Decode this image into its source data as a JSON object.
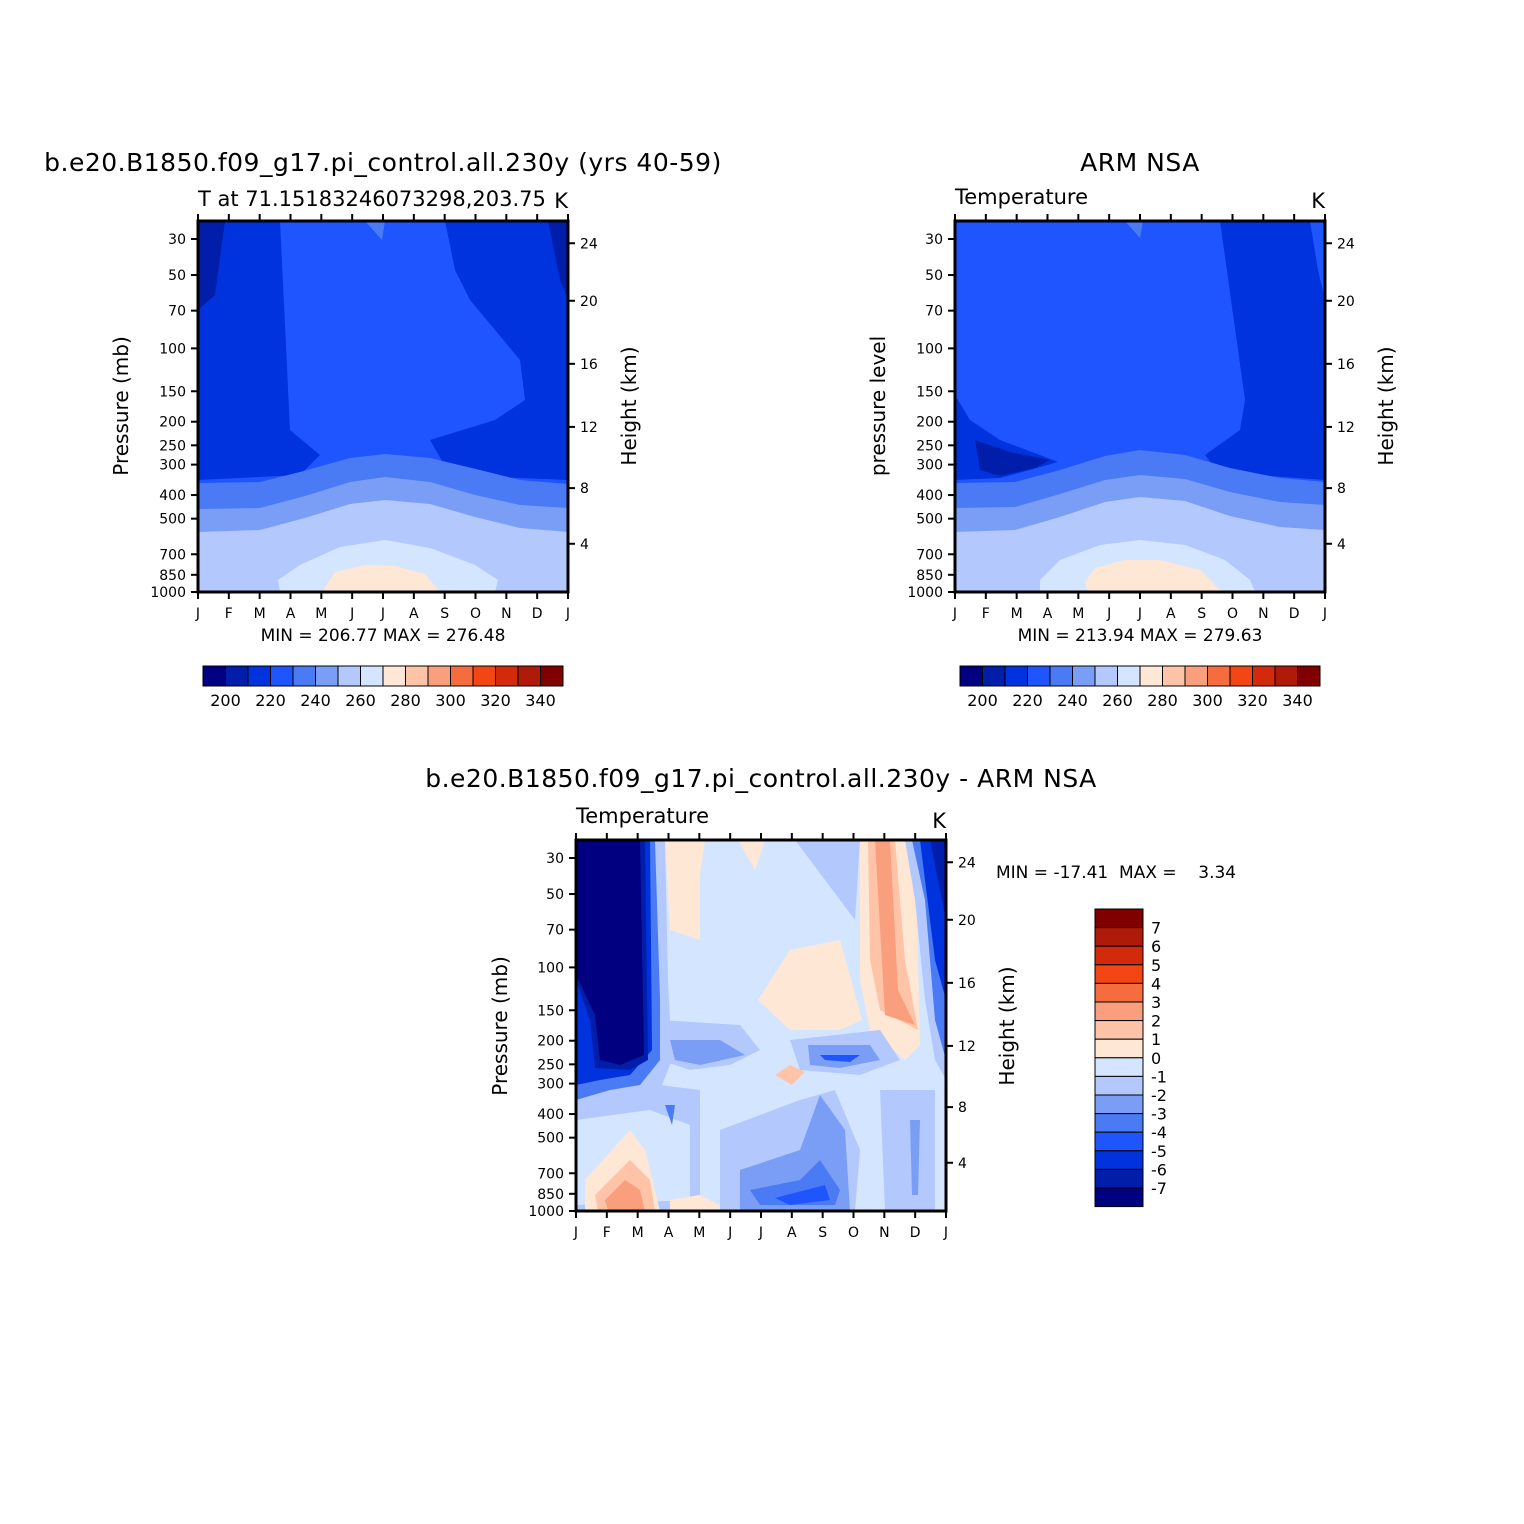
{
  "colors": {
    "scale": [
      "#000080",
      "#001eaa",
      "#0033dd",
      "#1f55ff",
      "#4a7af4",
      "#7a9ef6",
      "#b3c9fd",
      "#d4e6ff",
      "#ffe7d6",
      "#ffc4a8",
      "#fa9f7d",
      "#f56d3f",
      "#f44514",
      "#d22a0a",
      "#b01a08",
      "#800000"
    ],
    "diff_scale": [
      "#000080",
      "#001eaa",
      "#0033dd",
      "#1f55ff",
      "#4a7af4",
      "#7a9ef6",
      "#b3c9fd",
      "#d4e6ff",
      "#ffe7d6",
      "#ffc4a8",
      "#fa9f7d",
      "#f56d3f",
      "#f44514",
      "#d22a0a",
      "#b01a08",
      "#800000"
    ]
  },
  "chart_data": [
    {
      "type": "heatmap",
      "title": "b.e20.B1850.f09_g17.pi_control.all.230y (yrs 40-59)",
      "subtitle": "T at 71.15183246073298,203.75",
      "units": "K",
      "ylabel": "Pressure (mb)",
      "ylabel_right": "Height (km)",
      "x_ticks": [
        "J",
        "F",
        "M",
        "A",
        "M",
        "J",
        "J",
        "A",
        "S",
        "O",
        "N",
        "D",
        "J"
      ],
      "y_ticks": [
        "30",
        "50",
        "70",
        "100",
        "150",
        "200",
        "250",
        "300",
        "400",
        "500",
        "700",
        "850",
        "1000"
      ],
      "y_ticks_right": [
        "24",
        "20",
        "16",
        "12",
        "8",
        "4"
      ],
      "stats": "MIN = 206.77  MAX = 276.48",
      "colorbar_labels": [
        "200",
        "220",
        "240",
        "260",
        "280",
        "300",
        "320",
        "340"
      ]
    },
    {
      "type": "heatmap",
      "title": "ARM NSA",
      "subtitle": "Temperature",
      "units": "K",
      "ylabel": "pressure level",
      "ylabel_right": "Height (km)",
      "x_ticks": [
        "J",
        "F",
        "M",
        "A",
        "M",
        "J",
        "J",
        "A",
        "S",
        "O",
        "N",
        "D",
        "J"
      ],
      "y_ticks": [
        "30",
        "50",
        "70",
        "100",
        "150",
        "200",
        "250",
        "300",
        "400",
        "500",
        "700",
        "850",
        "1000"
      ],
      "y_ticks_right": [
        "24",
        "20",
        "16",
        "12",
        "8",
        "4"
      ],
      "stats": "MIN = 213.94  MAX = 279.63",
      "colorbar_labels": [
        "200",
        "220",
        "240",
        "260",
        "280",
        "300",
        "320",
        "340"
      ]
    },
    {
      "type": "heatmap",
      "title": "b.e20.B1850.f09_g17.pi_control.all.230y - ARM NSA",
      "subtitle": "Temperature",
      "units": "K",
      "ylabel": "Pressure (mb)",
      "ylabel_right": "Height (km)",
      "x_ticks": [
        "J",
        "F",
        "M",
        "A",
        "M",
        "J",
        "J",
        "A",
        "S",
        "O",
        "N",
        "D",
        "J"
      ],
      "y_ticks": [
        "30",
        "50",
        "70",
        "100",
        "150",
        "200",
        "250",
        "300",
        "400",
        "500",
        "700",
        "850",
        "1000"
      ],
      "y_ticks_right": [
        "24",
        "20",
        "16",
        "12",
        "8",
        "4"
      ],
      "stats": "MIN = -17.41  MAX =    3.34",
      "colorbar_labels": [
        "7",
        "6",
        "5",
        "4",
        "3",
        "2",
        "1",
        "0",
        "-1",
        "-2",
        "-3",
        "-4",
        "-5",
        "-6",
        "-7"
      ]
    }
  ]
}
